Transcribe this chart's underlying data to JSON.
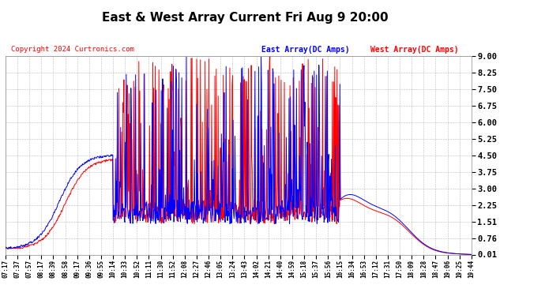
{
  "title": "East & West Array Current Fri Aug 9 20:00",
  "copyright": "Copyright 2024 Curtronics.com",
  "east_label": "East Array(DC Amps)",
  "west_label": "West Array(DC Amps)",
  "east_color": "blue",
  "west_color": "red",
  "background_color": "#ffffff",
  "grid_color": "#aaaaaa",
  "yticks": [
    0.01,
    0.76,
    1.51,
    2.25,
    3.0,
    3.75,
    4.5,
    5.25,
    6.0,
    6.75,
    7.5,
    8.25,
    9.0
  ],
  "ylim": [
    0.01,
    9.0
  ],
  "x_labels": [
    "07:17",
    "07:37",
    "07:57",
    "08:17",
    "08:39",
    "08:58",
    "09:17",
    "09:36",
    "09:55",
    "10:14",
    "10:33",
    "10:52",
    "11:11",
    "11:30",
    "11:52",
    "12:08",
    "12:27",
    "12:46",
    "13:05",
    "13:24",
    "13:43",
    "14:02",
    "14:21",
    "14:40",
    "14:59",
    "15:18",
    "15:37",
    "15:56",
    "16:15",
    "16:34",
    "16:53",
    "17:12",
    "17:31",
    "17:50",
    "18:09",
    "18:28",
    "18:47",
    "19:06",
    "19:25",
    "19:44"
  ]
}
